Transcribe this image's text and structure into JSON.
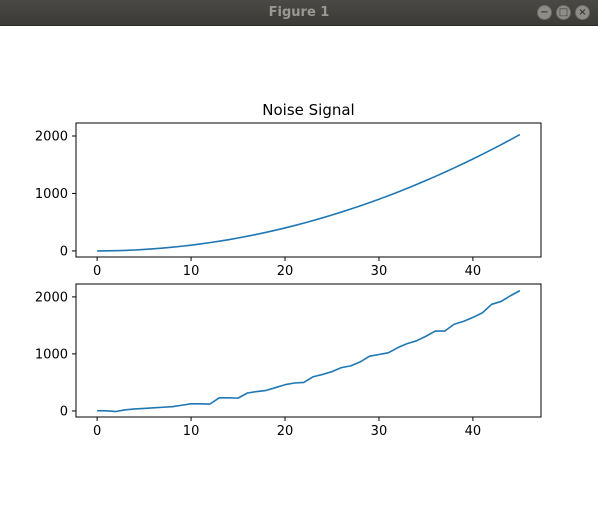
{
  "window": {
    "title": "Figure 1",
    "controls": {
      "minimize": "−",
      "maximize": "□",
      "close": "×"
    }
  },
  "colors": {
    "line": "#1f77b4",
    "axes": "#000000",
    "titlebar": "#3c3b37"
  },
  "chart_data": [
    {
      "type": "line",
      "title": "Noise Signal",
      "xlabel": "",
      "ylabel": "",
      "xlim": [
        -2.25,
        47.25
      ],
      "ylim": [
        -106,
        2226
      ],
      "xticks": [
        0,
        10,
        20,
        30,
        40
      ],
      "yticks": [
        0,
        1000,
        2000
      ],
      "grid": false,
      "series": [
        {
          "x": [
            0,
            1,
            2,
            3,
            4,
            5,
            6,
            7,
            8,
            9,
            10,
            11,
            12,
            13,
            14,
            15,
            16,
            17,
            18,
            19,
            20,
            21,
            22,
            23,
            24,
            25,
            26,
            27,
            28,
            29,
            30,
            31,
            32,
            33,
            34,
            35,
            36,
            37,
            38,
            39,
            40,
            41,
            42,
            43,
            44,
            45
          ],
          "values": [
            0,
            1,
            4,
            9,
            16,
            25,
            36,
            49,
            64,
            81,
            100,
            121,
            144,
            169,
            196,
            225,
            256,
            289,
            324,
            361,
            400,
            441,
            484,
            529,
            576,
            625,
            676,
            729,
            784,
            841,
            900,
            961,
            1024,
            1089,
            1156,
            1225,
            1296,
            1369,
            1444,
            1521,
            1600,
            1681,
            1764,
            1849,
            1936,
            2025
          ]
        }
      ]
    },
    {
      "type": "line",
      "title": "",
      "xlabel": "",
      "ylabel": "",
      "xlim": [
        -2.25,
        47.25
      ],
      "ylim": [
        -106,
        2226
      ],
      "xticks": [
        0,
        10,
        20,
        30,
        40
      ],
      "yticks": [
        0,
        1000,
        2000
      ],
      "grid": false,
      "series": [
        {
          "x": [
            0,
            1,
            2,
            3,
            4,
            5,
            6,
            7,
            8,
            9,
            10,
            11,
            12,
            13,
            14,
            15,
            16,
            17,
            18,
            19,
            20,
            21,
            22,
            23,
            24,
            25,
            26,
            27,
            28,
            29,
            30,
            31,
            32,
            33,
            34,
            35,
            36,
            37,
            38,
            39,
            40,
            41,
            42,
            43,
            44,
            45
          ],
          "values": [
            5,
            3,
            -10,
            20,
            35,
            45,
            55,
            65,
            75,
            100,
            125,
            125,
            120,
            230,
            230,
            225,
            315,
            340,
            360,
            410,
            460,
            490,
            500,
            600,
            640,
            690,
            760,
            790,
            860,
            960,
            990,
            1020,
            1110,
            1180,
            1230,
            1310,
            1400,
            1400,
            1520,
            1570,
            1640,
            1720,
            1870,
            1920,
            2020,
            2110
          ]
        }
      ]
    }
  ]
}
